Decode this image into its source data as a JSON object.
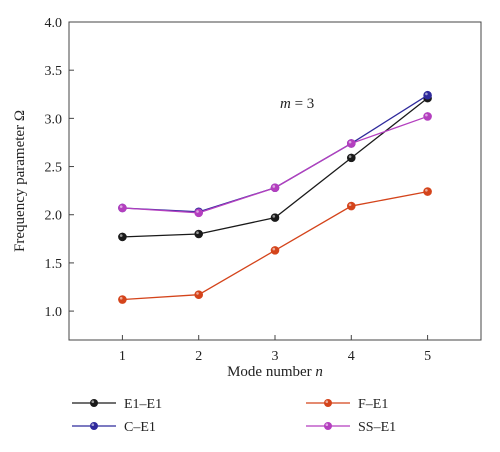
{
  "chart_data": {
    "type": "line",
    "x": [
      1,
      2,
      3,
      4,
      5
    ],
    "xlabel": "Mode number",
    "xlabel_var": "n",
    "ylabel": "Frequency parameter Ω",
    "xlim": [
      0.3,
      5.7
    ],
    "ylim": [
      0.7,
      4.0
    ],
    "xticks": [
      1,
      2,
      3,
      4,
      5
    ],
    "yticks": [
      1.0,
      1.5,
      2.0,
      2.5,
      3.0,
      3.5,
      4.0
    ],
    "ytick_labels": [
      "1.0",
      "1.5",
      "2.0",
      "2.5",
      "3.0",
      "3.5",
      "4.0"
    ],
    "grid": false,
    "legend_position": "bottom",
    "annotation": {
      "var": "m",
      "rest": " = 3"
    },
    "series": [
      {
        "name": "E1–E1",
        "color": "#1a1a1a",
        "values": [
          1.77,
          1.8,
          1.97,
          2.59,
          3.21
        ]
      },
      {
        "name": "F–E1",
        "color": "#d4441b",
        "values": [
          1.12,
          1.17,
          1.63,
          2.09,
          2.24
        ]
      },
      {
        "name": "C–E1",
        "color": "#2f2a9c",
        "values": [
          2.07,
          2.03,
          2.28,
          2.74,
          3.24
        ]
      },
      {
        "name": "SS–E1",
        "color": "#b43fbf",
        "values": [
          2.07,
          2.02,
          2.28,
          2.74,
          3.02
        ]
      }
    ]
  }
}
